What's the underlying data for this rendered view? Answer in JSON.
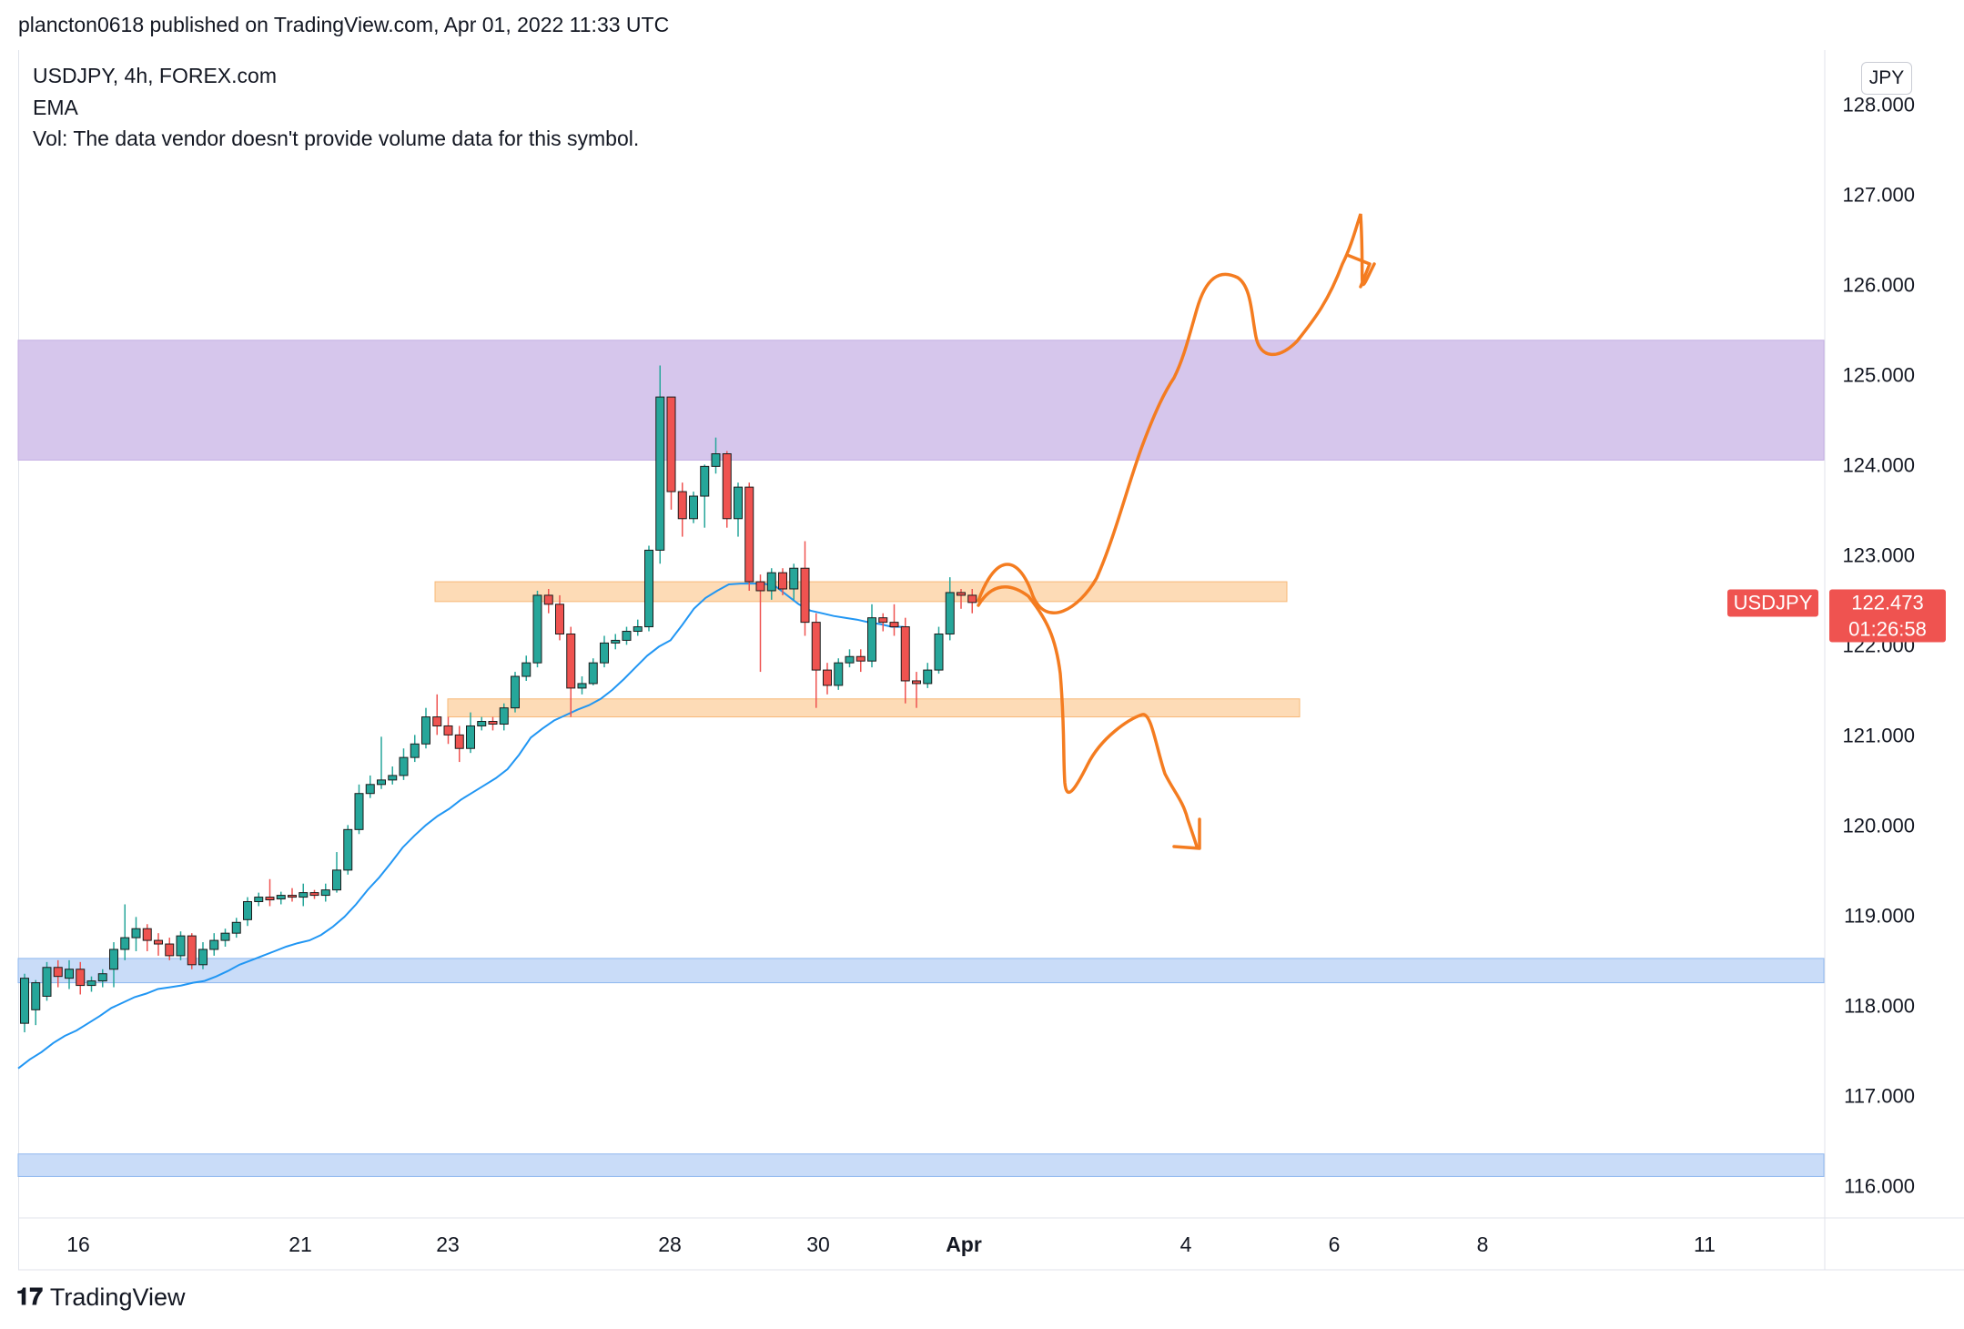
{
  "header": {
    "published": "plancton0618 published on TradingView.com, Apr 01, 2022 11:33 UTC"
  },
  "legend": {
    "symbol_line": "USDJPY, 4h, FOREX.com",
    "indicator": "EMA",
    "volume_note": "Vol: The data vendor doesn't provide volume data for this symbol."
  },
  "price_scale": {
    "currency": "JPY"
  },
  "last_price": {
    "symbol": "USDJPY",
    "value": "122.473",
    "countdown": "01:26:58"
  },
  "footer": {
    "brand": "TradingView"
  },
  "colors": {
    "up": "#26a69a",
    "down": "#ef5350",
    "ema": "#2196f3",
    "resistance_zone": "#d6c6ec",
    "sr_zone": "#fddbb6",
    "support_zone": "#c9dcf8",
    "drawing": "#f47c20",
    "price_label": "#ef5350"
  },
  "chart_data": {
    "type": "candlestick",
    "symbol": "USDJPY",
    "timeframe": "4h",
    "y_axis": {
      "ticks": [
        "128.000",
        "127.000",
        "126.000",
        "125.000",
        "124.000",
        "123.000",
        "122.000",
        "121.000",
        "120.000",
        "119.000",
        "118.000",
        "117.000",
        "116.000"
      ],
      "range": [
        115.65,
        128.6
      ]
    },
    "x_axis": {
      "ticks": [
        "16",
        "21",
        "23",
        "28",
        "30",
        "Apr",
        "4",
        "6",
        "8",
        "11"
      ]
    },
    "candles": [
      [
        117.8,
        118.3,
        117.7,
        118.35
      ],
      [
        117.95,
        118.25,
        117.78,
        118.28
      ],
      [
        118.1,
        118.42,
        118.05,
        118.48
      ],
      [
        118.42,
        118.32,
        118.2,
        118.5
      ],
      [
        118.3,
        118.4,
        118.18,
        118.5
      ],
      [
        118.4,
        118.22,
        118.12,
        118.48
      ],
      [
        118.22,
        118.27,
        118.15,
        118.32
      ],
      [
        118.27,
        118.35,
        118.2,
        118.4
      ],
      [
        118.4,
        118.62,
        118.2,
        118.7
      ],
      [
        118.62,
        118.75,
        118.5,
        119.12
      ],
      [
        118.75,
        118.85,
        118.6,
        118.98
      ],
      [
        118.85,
        118.72,
        118.6,
        118.9
      ],
      [
        118.72,
        118.68,
        118.55,
        118.8
      ],
      [
        118.68,
        118.55,
        118.5,
        118.75
      ],
      [
        118.55,
        118.77,
        118.5,
        118.82
      ],
      [
        118.77,
        118.45,
        118.4,
        118.8
      ],
      [
        118.45,
        118.62,
        118.4,
        118.7
      ],
      [
        118.62,
        118.72,
        118.55,
        118.8
      ],
      [
        118.72,
        118.8,
        118.65,
        118.85
      ],
      [
        118.8,
        118.92,
        118.75,
        118.97
      ],
      [
        118.95,
        119.15,
        118.88,
        119.2
      ],
      [
        119.15,
        119.2,
        119.1,
        119.25
      ],
      [
        119.2,
        119.17,
        119.1,
        119.4
      ],
      [
        119.18,
        119.22,
        119.12,
        119.26
      ],
      [
        119.22,
        119.2,
        119.15,
        119.3
      ],
      [
        119.2,
        119.25,
        119.1,
        119.35
      ],
      [
        119.25,
        119.22,
        119.18,
        119.28
      ],
      [
        119.22,
        119.28,
        119.15,
        119.35
      ],
      [
        119.28,
        119.5,
        119.25,
        119.7
      ],
      [
        119.5,
        119.95,
        119.45,
        120.0
      ],
      [
        119.95,
        120.35,
        119.9,
        120.45
      ],
      [
        120.35,
        120.45,
        120.3,
        120.55
      ],
      [
        120.45,
        120.5,
        120.4,
        120.98
      ],
      [
        120.5,
        120.55,
        120.45,
        120.65
      ],
      [
        120.55,
        120.75,
        120.5,
        120.85
      ],
      [
        120.75,
        120.9,
        120.7,
        121.0
      ],
      [
        120.9,
        121.2,
        120.85,
        121.3
      ],
      [
        121.2,
        121.1,
        121.0,
        121.45
      ],
      [
        121.1,
        121.0,
        120.9,
        121.2
      ],
      [
        121.0,
        120.85,
        120.7,
        121.1
      ],
      [
        120.85,
        121.1,
        120.8,
        121.25
      ],
      [
        121.1,
        121.15,
        121.05,
        121.2
      ],
      [
        121.15,
        121.12,
        121.05,
        121.2
      ],
      [
        121.12,
        121.3,
        121.05,
        121.35
      ],
      [
        121.3,
        121.65,
        121.25,
        121.7
      ],
      [
        121.65,
        121.8,
        121.6,
        121.88
      ],
      [
        121.8,
        122.55,
        121.75,
        122.6
      ],
      [
        122.55,
        122.45,
        122.35,
        122.62
      ],
      [
        122.45,
        122.12,
        122.05,
        122.55
      ],
      [
        122.12,
        121.52,
        121.2,
        122.2
      ],
      [
        121.52,
        121.57,
        121.45,
        121.65
      ],
      [
        121.57,
        121.8,
        121.55,
        121.85
      ],
      [
        121.8,
        122.02,
        121.75,
        122.1
      ],
      [
        122.02,
        122.05,
        121.95,
        122.12
      ],
      [
        122.05,
        122.15,
        122.0,
        122.2
      ],
      [
        122.15,
        122.2,
        122.1,
        122.28
      ],
      [
        122.2,
        123.05,
        122.15,
        123.1
      ],
      [
        123.05,
        124.75,
        122.9,
        125.1
      ],
      [
        124.75,
        123.7,
        123.5,
        124.75
      ],
      [
        123.7,
        123.4,
        123.2,
        123.8
      ],
      [
        123.4,
        123.65,
        123.35,
        123.7
      ],
      [
        123.65,
        123.98,
        123.3,
        124.0
      ],
      [
        123.98,
        124.12,
        123.9,
        124.3
      ],
      [
        124.12,
        123.4,
        123.3,
        124.15
      ],
      [
        123.4,
        123.75,
        123.2,
        123.8
      ],
      [
        123.75,
        122.7,
        122.6,
        123.8
      ],
      [
        122.7,
        122.6,
        121.7,
        122.78
      ],
      [
        122.6,
        122.8,
        122.5,
        122.85
      ],
      [
        122.8,
        122.62,
        122.55,
        122.85
      ],
      [
        122.62,
        122.85,
        122.5,
        122.9
      ],
      [
        122.85,
        122.25,
        122.1,
        123.15
      ],
      [
        122.25,
        121.72,
        121.3,
        122.35
      ],
      [
        121.72,
        121.55,
        121.45,
        121.8
      ],
      [
        121.55,
        121.8,
        121.5,
        121.85
      ],
      [
        121.8,
        121.87,
        121.75,
        121.95
      ],
      [
        121.87,
        121.82,
        121.7,
        121.95
      ],
      [
        121.82,
        122.3,
        121.75,
        122.45
      ],
      [
        122.3,
        122.25,
        122.15,
        122.35
      ],
      [
        122.25,
        122.2,
        122.1,
        122.45
      ],
      [
        122.2,
        121.6,
        121.35,
        122.3
      ],
      [
        121.6,
        121.57,
        121.3,
        121.7
      ],
      [
        121.57,
        121.72,
        121.52,
        121.8
      ],
      [
        121.72,
        122.12,
        121.68,
        122.2
      ],
      [
        122.12,
        122.58,
        122.05,
        122.75
      ],
      [
        122.58,
        122.55,
        122.4,
        122.62
      ],
      [
        122.55,
        122.47,
        122.35,
        122.62
      ]
    ],
    "ema": [
      117.3,
      117.4,
      117.48,
      117.58,
      117.66,
      117.72,
      117.8,
      117.88,
      117.97,
      118.03,
      118.09,
      118.13,
      118.18,
      118.2,
      118.22,
      118.25,
      118.27,
      118.32,
      118.38,
      118.45,
      118.5,
      118.55,
      118.6,
      118.65,
      118.69,
      118.72,
      118.78,
      118.87,
      118.98,
      119.12,
      119.28,
      119.42,
      119.58,
      119.75,
      119.88,
      120.0,
      120.1,
      120.18,
      120.28,
      120.36,
      120.44,
      120.52,
      120.62,
      120.78,
      120.97,
      121.07,
      121.16,
      121.22,
      121.28,
      121.33,
      121.4,
      121.5,
      121.62,
      121.75,
      121.88,
      121.98,
      122.05,
      122.22,
      122.4,
      122.52,
      122.6,
      122.67,
      122.68,
      122.68,
      122.68,
      122.65,
      122.55,
      122.45,
      122.38,
      122.35,
      122.32,
      122.3,
      122.28,
      122.25,
      122.23,
      122.2,
      122.2
    ],
    "zones": [
      {
        "kind": "resistance",
        "y_top": 125.38,
        "y_bottom": 124.05
      },
      {
        "kind": "support-resistance",
        "y_top": 122.7,
        "y_bottom": 122.48,
        "x_from": 23,
        "x_to": "5"
      },
      {
        "kind": "support-resistance",
        "y_top": 121.4,
        "y_bottom": 121.2,
        "x_from": 23,
        "x_to": "5"
      },
      {
        "kind": "support",
        "y_top": 118.52,
        "y_bottom": 118.25
      },
      {
        "kind": "support",
        "y_top": 116.35,
        "y_bottom": 116.1
      }
    ],
    "projection": {
      "bullish_target": 126.5,
      "bearish_target": 119.9
    }
  }
}
